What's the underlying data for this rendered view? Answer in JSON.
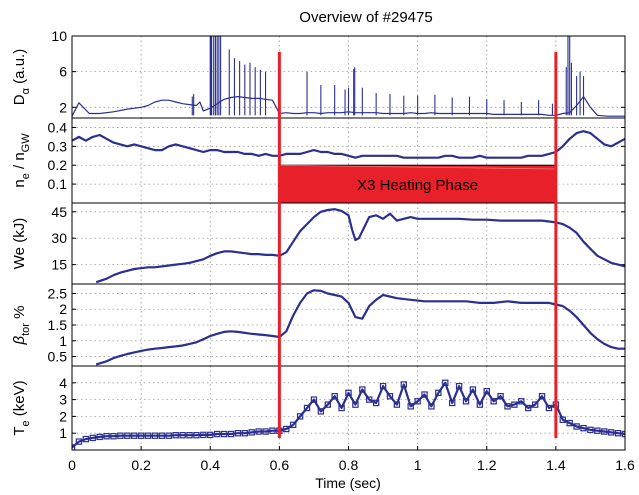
{
  "title": "Overview of #29475",
  "colors": {
    "series": "#2b2f8f",
    "heating": "#e8202a"
  },
  "chart_data": {
    "type": "line",
    "x_axis": {
      "label": "Time (sec)",
      "range": [
        0,
        1.6
      ],
      "ticks": [
        "0",
        "0.2",
        "0.4",
        "0.6",
        "0.8",
        "1",
        "1.2",
        "1.4",
        "1.6"
      ],
      "grid": true
    },
    "heating_phase": {
      "label": "X3 Heating Phase",
      "start": 0.6,
      "end": 1.4,
      "band_panel": 1,
      "band_y": [
        0.0,
        0.2
      ]
    },
    "panels": [
      {
        "ylabel": "D",
        "ylabel_sub": "α",
        "ylabel_unit": " (a.u.)",
        "ylim": [
          0.8,
          10
        ],
        "yticks": [
          2,
          6,
          10
        ],
        "ytick_labels": [
          "2",
          "6",
          "10"
        ],
        "style": "dense",
        "x": [
          0.0,
          0.02,
          0.05,
          0.08,
          0.12,
          0.16,
          0.2,
          0.22,
          0.24,
          0.26,
          0.28,
          0.3,
          0.32,
          0.34,
          0.36,
          0.37,
          0.38,
          0.4,
          0.42,
          0.44,
          0.46,
          0.48,
          0.5,
          0.52,
          0.54,
          0.56,
          0.58,
          0.6,
          0.62,
          0.64,
          0.66,
          0.68,
          0.7,
          0.72,
          0.74,
          0.76,
          0.78,
          0.8,
          0.82,
          0.84,
          0.86,
          0.88,
          0.9,
          0.92,
          0.94,
          0.96,
          0.98,
          1.0,
          1.02,
          1.04,
          1.06,
          1.08,
          1.1,
          1.12,
          1.14,
          1.16,
          1.18,
          1.2,
          1.22,
          1.24,
          1.26,
          1.28,
          1.3,
          1.32,
          1.34,
          1.36,
          1.38,
          1.4,
          1.42,
          1.44,
          1.46,
          1.48,
          1.5,
          1.52,
          1.55,
          1.6
        ],
        "y": [
          1.0,
          2.5,
          1.3,
          1.3,
          1.5,
          1.8,
          2.0,
          2.2,
          2.6,
          2.8,
          2.8,
          2.6,
          2.4,
          2.3,
          2.2,
          2.6,
          1.6,
          1.9,
          2.4,
          2.9,
          3.1,
          3.2,
          3.1,
          3.0,
          3.0,
          2.9,
          2.8,
          1.3,
          1.4,
          1.3,
          1.3,
          1.4,
          1.4,
          1.3,
          1.4,
          1.4,
          1.4,
          1.5,
          1.4,
          1.4,
          1.4,
          1.4,
          1.3,
          1.3,
          1.3,
          1.3,
          1.4,
          1.3,
          1.3,
          1.4,
          1.3,
          1.3,
          1.3,
          1.3,
          1.3,
          1.3,
          1.3,
          1.3,
          1.2,
          1.2,
          1.2,
          1.2,
          1.2,
          1.2,
          1.2,
          1.2,
          1.1,
          1.1,
          1.3,
          1.4,
          2.2,
          3.2,
          2.0,
          1.1,
          1.0,
          1.0
        ],
        "spikes": [
          {
            "x": 0.348,
            "top": 3.2
          },
          {
            "x": 0.352,
            "top": 3.5
          },
          {
            "x": 0.4,
            "top": 10
          },
          {
            "x": 0.402,
            "top": 10
          },
          {
            "x": 0.404,
            "top": 10
          },
          {
            "x": 0.41,
            "top": 10
          },
          {
            "x": 0.415,
            "top": 10
          },
          {
            "x": 0.42,
            "top": 10
          },
          {
            "x": 0.425,
            "top": 10
          },
          {
            "x": 0.43,
            "top": 10
          },
          {
            "x": 0.455,
            "top": 8.5
          },
          {
            "x": 0.47,
            "top": 7.5
          },
          {
            "x": 0.485,
            "top": 7.2
          },
          {
            "x": 0.5,
            "top": 6.8
          },
          {
            "x": 0.515,
            "top": 7.0
          },
          {
            "x": 0.53,
            "top": 6.5
          },
          {
            "x": 0.545,
            "top": 6.2
          },
          {
            "x": 0.56,
            "top": 6.0
          },
          {
            "x": 0.68,
            "top": 6.0
          },
          {
            "x": 0.72,
            "top": 4.5
          },
          {
            "x": 0.76,
            "top": 4.5
          },
          {
            "x": 0.79,
            "top": 4.0
          },
          {
            "x": 0.8,
            "top": 4.2
          },
          {
            "x": 0.815,
            "top": 6.3
          },
          {
            "x": 0.818,
            "top": 6.5
          },
          {
            "x": 0.84,
            "top": 4.2
          },
          {
            "x": 0.88,
            "top": 3.6
          },
          {
            "x": 0.92,
            "top": 3.5
          },
          {
            "x": 0.96,
            "top": 3.3
          },
          {
            "x": 1.0,
            "top": 3.3
          },
          {
            "x": 1.05,
            "top": 3.4
          },
          {
            "x": 1.1,
            "top": 3.1
          },
          {
            "x": 1.15,
            "top": 3.2
          },
          {
            "x": 1.2,
            "top": 2.9
          },
          {
            "x": 1.25,
            "top": 2.8
          },
          {
            "x": 1.3,
            "top": 2.6
          },
          {
            "x": 1.35,
            "top": 2.8
          },
          {
            "x": 1.39,
            "top": 2.4
          },
          {
            "x": 1.43,
            "top": 6.5
          },
          {
            "x": 1.435,
            "top": 10
          },
          {
            "x": 1.44,
            "top": 10
          },
          {
            "x": 1.445,
            "top": 7.0
          },
          {
            "x": 1.46,
            "top": 5.5
          },
          {
            "x": 1.47,
            "top": 6.0
          },
          {
            "x": 1.48,
            "top": 5.5
          }
        ]
      },
      {
        "ylabel": "n",
        "ylabel_sub": "e",
        "ylabel_mid": " / n",
        "ylabel_sub2": "GW",
        "ylim": [
          0,
          0.45
        ],
        "yticks": [
          0.1,
          0.2,
          0.3,
          0.4
        ],
        "ytick_labels": [
          "0.1",
          "0.2",
          "0.3",
          "0.4"
        ],
        "style": "line",
        "x": [
          0.0,
          0.02,
          0.04,
          0.06,
          0.08,
          0.1,
          0.12,
          0.14,
          0.16,
          0.18,
          0.2,
          0.22,
          0.24,
          0.26,
          0.28,
          0.3,
          0.32,
          0.34,
          0.36,
          0.38,
          0.4,
          0.42,
          0.44,
          0.46,
          0.48,
          0.5,
          0.52,
          0.54,
          0.56,
          0.58,
          0.6,
          0.62,
          0.64,
          0.66,
          0.68,
          0.7,
          0.72,
          0.74,
          0.76,
          0.78,
          0.8,
          0.82,
          0.84,
          0.86,
          0.88,
          0.9,
          0.92,
          0.94,
          0.96,
          0.98,
          1.0,
          1.02,
          1.04,
          1.06,
          1.08,
          1.1,
          1.12,
          1.14,
          1.16,
          1.18,
          1.2,
          1.22,
          1.24,
          1.26,
          1.28,
          1.3,
          1.32,
          1.34,
          1.36,
          1.38,
          1.4,
          1.42,
          1.44,
          1.46,
          1.48,
          1.5,
          1.52,
          1.54,
          1.56,
          1.58,
          1.6
        ],
        "y": [
          0.33,
          0.35,
          0.33,
          0.35,
          0.36,
          0.34,
          0.32,
          0.31,
          0.3,
          0.31,
          0.3,
          0.29,
          0.28,
          0.28,
          0.3,
          0.31,
          0.3,
          0.29,
          0.28,
          0.27,
          0.28,
          0.28,
          0.27,
          0.27,
          0.27,
          0.26,
          0.26,
          0.25,
          0.26,
          0.25,
          0.25,
          0.26,
          0.26,
          0.26,
          0.27,
          0.28,
          0.27,
          0.27,
          0.26,
          0.26,
          0.25,
          0.24,
          0.25,
          0.25,
          0.25,
          0.25,
          0.25,
          0.25,
          0.24,
          0.24,
          0.24,
          0.24,
          0.24,
          0.24,
          0.25,
          0.25,
          0.24,
          0.24,
          0.24,
          0.25,
          0.24,
          0.24,
          0.24,
          0.24,
          0.24,
          0.24,
          0.25,
          0.25,
          0.25,
          0.26,
          0.27,
          0.3,
          0.34,
          0.37,
          0.38,
          0.37,
          0.34,
          0.31,
          0.3,
          0.32,
          0.34
        ]
      },
      {
        "ylabel": "We",
        "ylabel_unit": " (kJ)",
        "ylim": [
          4,
          50
        ],
        "yticks": [
          15,
          30,
          45
        ],
        "ytick_labels": [
          "15",
          "30",
          "45"
        ],
        "style": "line",
        "x": [
          0.07,
          0.1,
          0.12,
          0.14,
          0.16,
          0.18,
          0.2,
          0.22,
          0.24,
          0.26,
          0.28,
          0.3,
          0.32,
          0.34,
          0.36,
          0.38,
          0.4,
          0.42,
          0.44,
          0.46,
          0.48,
          0.5,
          0.52,
          0.54,
          0.56,
          0.58,
          0.6,
          0.62,
          0.64,
          0.66,
          0.68,
          0.7,
          0.72,
          0.74,
          0.76,
          0.78,
          0.8,
          0.81,
          0.82,
          0.83,
          0.84,
          0.86,
          0.88,
          0.9,
          0.92,
          0.94,
          0.96,
          0.98,
          1.0,
          1.04,
          1.08,
          1.12,
          1.16,
          1.2,
          1.24,
          1.28,
          1.32,
          1.36,
          1.4,
          1.42,
          1.44,
          1.46,
          1.48,
          1.5,
          1.52,
          1.54,
          1.56,
          1.58,
          1.6
        ],
        "y": [
          5,
          7,
          9,
          10.5,
          11.5,
          12.5,
          13,
          13.5,
          13.5,
          14,
          14.5,
          15,
          15.5,
          16,
          17,
          18,
          20,
          21.5,
          22.5,
          22.5,
          22,
          21.5,
          21,
          21,
          20.5,
          20.5,
          20,
          22,
          28,
          34,
          38,
          42,
          45,
          46,
          46.5,
          45.5,
          43,
          35,
          29,
          30,
          34,
          42,
          43,
          41,
          44,
          40,
          41,
          42,
          41,
          41,
          41,
          41,
          40.5,
          40.5,
          40,
          40,
          40,
          40,
          39,
          38,
          36,
          33,
          28,
          24,
          20,
          18,
          16,
          15,
          14
        ]
      },
      {
        "ylabel": "β",
        "ylabel_sub": "tor",
        "ylabel_unit": " %",
        "ylim": [
          0.2,
          2.8
        ],
        "yticks": [
          0.5,
          1,
          1.5,
          2,
          2.5
        ],
        "ytick_labels": [
          "0.5",
          "1",
          "1.5",
          "2",
          "2.5"
        ],
        "style": "line",
        "x": [
          0.07,
          0.1,
          0.12,
          0.14,
          0.16,
          0.18,
          0.2,
          0.22,
          0.24,
          0.26,
          0.28,
          0.3,
          0.32,
          0.34,
          0.36,
          0.38,
          0.4,
          0.42,
          0.44,
          0.46,
          0.48,
          0.5,
          0.52,
          0.54,
          0.56,
          0.58,
          0.6,
          0.62,
          0.64,
          0.66,
          0.68,
          0.7,
          0.72,
          0.74,
          0.76,
          0.78,
          0.8,
          0.82,
          0.84,
          0.86,
          0.88,
          0.9,
          0.94,
          0.98,
          1.02,
          1.06,
          1.1,
          1.14,
          1.18,
          1.22,
          1.26,
          1.3,
          1.34,
          1.38,
          1.4,
          1.42,
          1.44,
          1.46,
          1.48,
          1.5,
          1.52,
          1.54,
          1.56,
          1.58,
          1.6
        ],
        "y": [
          0.25,
          0.35,
          0.45,
          0.52,
          0.58,
          0.63,
          0.68,
          0.72,
          0.75,
          0.77,
          0.8,
          0.82,
          0.85,
          0.9,
          0.95,
          1.05,
          1.15,
          1.22,
          1.28,
          1.3,
          1.28,
          1.25,
          1.22,
          1.2,
          1.18,
          1.15,
          1.12,
          1.3,
          1.8,
          2.2,
          2.5,
          2.6,
          2.58,
          2.5,
          2.45,
          2.4,
          2.2,
          1.75,
          1.7,
          2.1,
          2.3,
          2.45,
          2.35,
          2.3,
          2.25,
          2.25,
          2.25,
          2.25,
          2.2,
          2.2,
          2.25,
          2.2,
          2.2,
          2.2,
          2.15,
          2.1,
          1.95,
          1.75,
          1.5,
          1.25,
          1.05,
          0.9,
          0.8,
          0.75,
          0.75
        ]
      },
      {
        "ylabel": "T",
        "ylabel_sub": "e",
        "ylabel_unit": " (keV)",
        "ylim": [
          0,
          5
        ],
        "yticks": [
          1,
          2,
          3,
          4
        ],
        "ytick_labels": [
          "1",
          "2",
          "3",
          "4"
        ],
        "style": "markers",
        "x": [
          0.0,
          0.02,
          0.04,
          0.06,
          0.08,
          0.1,
          0.12,
          0.14,
          0.16,
          0.18,
          0.2,
          0.22,
          0.24,
          0.26,
          0.28,
          0.3,
          0.32,
          0.34,
          0.36,
          0.38,
          0.4,
          0.42,
          0.44,
          0.46,
          0.48,
          0.5,
          0.52,
          0.54,
          0.56,
          0.58,
          0.6,
          0.62,
          0.64,
          0.66,
          0.68,
          0.7,
          0.72,
          0.74,
          0.76,
          0.78,
          0.8,
          0.82,
          0.84,
          0.86,
          0.88,
          0.9,
          0.92,
          0.94,
          0.96,
          0.98,
          1.0,
          1.02,
          1.04,
          1.06,
          1.08,
          1.1,
          1.12,
          1.14,
          1.16,
          1.18,
          1.2,
          1.22,
          1.24,
          1.26,
          1.28,
          1.3,
          1.32,
          1.34,
          1.36,
          1.38,
          1.4,
          1.42,
          1.44,
          1.46,
          1.48,
          1.5,
          1.52,
          1.54,
          1.56,
          1.58,
          1.6
        ],
        "y": [
          0.15,
          0.5,
          0.65,
          0.72,
          0.78,
          0.82,
          0.82,
          0.85,
          0.85,
          0.85,
          0.85,
          0.85,
          0.85,
          0.85,
          0.85,
          0.88,
          0.88,
          0.88,
          0.88,
          0.9,
          0.9,
          0.95,
          0.95,
          0.95,
          1.0,
          1.0,
          1.05,
          1.1,
          1.1,
          1.15,
          1.15,
          1.25,
          1.5,
          2.0,
          2.5,
          3.0,
          2.3,
          2.7,
          3.2,
          2.5,
          3.4,
          2.7,
          3.6,
          3.0,
          2.8,
          3.8,
          3.2,
          2.7,
          3.9,
          2.6,
          2.9,
          3.3,
          2.6,
          3.4,
          4.0,
          2.8,
          3.8,
          2.9,
          3.6,
          2.7,
          3.5,
          2.9,
          3.2,
          2.6,
          2.7,
          2.9,
          2.5,
          2.7,
          3.2,
          2.5,
          2.7,
          1.8,
          1.6,
          1.4,
          1.3,
          1.2,
          1.15,
          1.1,
          1.05,
          1.0,
          0.95
        ]
      }
    ]
  }
}
